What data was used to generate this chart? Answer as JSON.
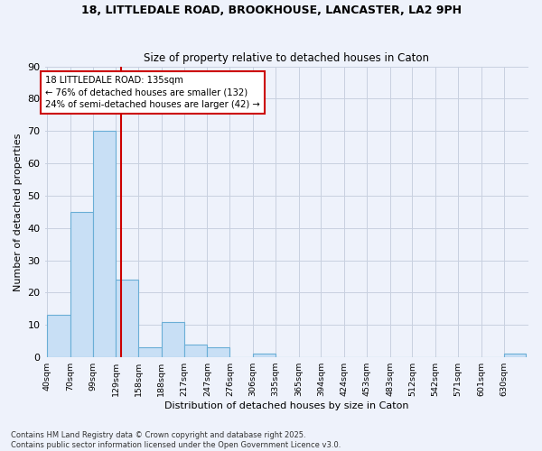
{
  "title_line1": "18, LITTLEDALE ROAD, BROOKHOUSE, LANCASTER, LA2 9PH",
  "title_line2": "Size of property relative to detached houses in Caton",
  "xlabel": "Distribution of detached houses by size in Caton",
  "ylabel": "Number of detached properties",
  "bin_left": [
    40,
    70,
    99,
    129,
    158,
    188,
    217,
    247,
    276,
    306,
    335,
    365,
    394,
    424,
    453,
    483,
    512,
    542,
    571,
    601,
    630
  ],
  "bin_width": 29,
  "bar_heights": [
    13,
    45,
    70,
    24,
    3,
    11,
    4,
    3,
    0,
    1,
    0,
    0,
    0,
    0,
    0,
    0,
    0,
    0,
    0,
    0,
    1
  ],
  "bin_labels": [
    "40sqm",
    "70sqm",
    "99sqm",
    "129sqm",
    "158sqm",
    "188sqm",
    "217sqm",
    "247sqm",
    "276sqm",
    "306sqm",
    "335sqm",
    "365sqm",
    "394sqm",
    "424sqm",
    "453sqm",
    "483sqm",
    "512sqm",
    "542sqm",
    "571sqm",
    "601sqm",
    "630sqm"
  ],
  "bar_color": "#c8dff5",
  "bar_edge_color": "#6aaed6",
  "vline_x": 135,
  "vline_color": "#cc0000",
  "ylim": [
    0,
    90
  ],
  "yticks": [
    0,
    10,
    20,
    30,
    40,
    50,
    60,
    70,
    80,
    90
  ],
  "annotation_text": "18 LITTLEDALE ROAD: 135sqm\n← 76% of detached houses are smaller (132)\n24% of semi-detached houses are larger (42) →",
  "annotation_box_color": "#cc0000",
  "footer_line1": "Contains HM Land Registry data © Crown copyright and database right 2025.",
  "footer_line2": "Contains public sector information licensed under the Open Government Licence v3.0.",
  "background_color": "#eef2fb",
  "grid_color": "#c8d0e0"
}
